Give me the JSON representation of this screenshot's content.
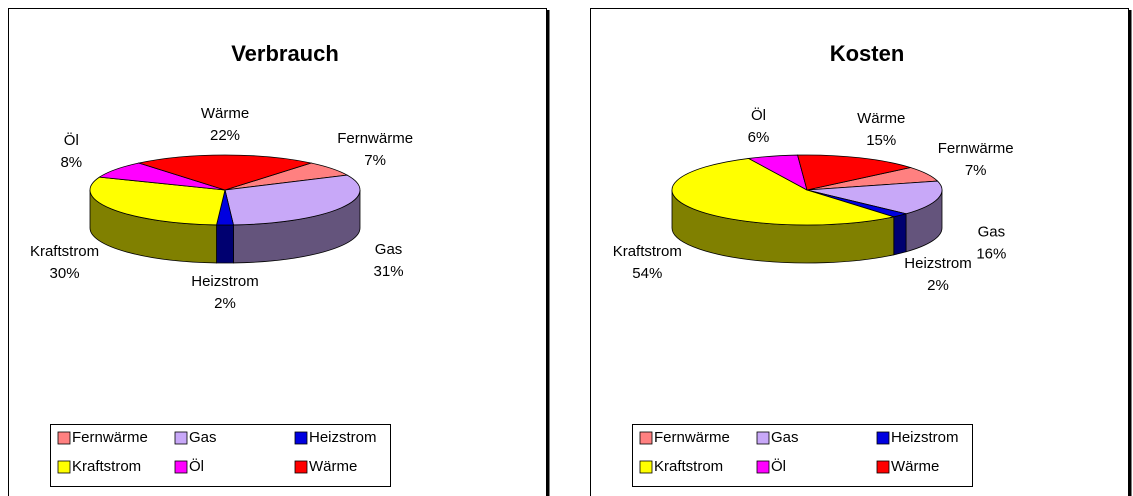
{
  "chart_data": [
    {
      "type": "pie",
      "title": "Verbrauch",
      "categories": [
        "Fernwärme",
        "Gas",
        "Heizstrom",
        "Kraftstrom",
        "Öl",
        "Wärme"
      ],
      "values": [
        7,
        31,
        2,
        30,
        8,
        22
      ],
      "value_labels": [
        "7%",
        "31%",
        "2%",
        "30%",
        "8%",
        "22%"
      ],
      "colors": [
        "#ff8080",
        "#c8a8f8",
        "#0000e0",
        "#ffff00",
        "#ff00ff",
        "#ff0000"
      ]
    },
    {
      "type": "pie",
      "title": "Kosten",
      "categories": [
        "Fernwärme",
        "Gas",
        "Heizstrom",
        "Kraftstrom",
        "Öl",
        "Wärme"
      ],
      "values": [
        7,
        16,
        2,
        54,
        6,
        15
      ],
      "value_labels": [
        "7%",
        "16%",
        "2%",
        "54%",
        "6%",
        "15%"
      ],
      "colors": [
        "#ff8080",
        "#c8a8f8",
        "#0000e0",
        "#ffff00",
        "#ff00ff",
        "#ff0000"
      ]
    }
  ]
}
